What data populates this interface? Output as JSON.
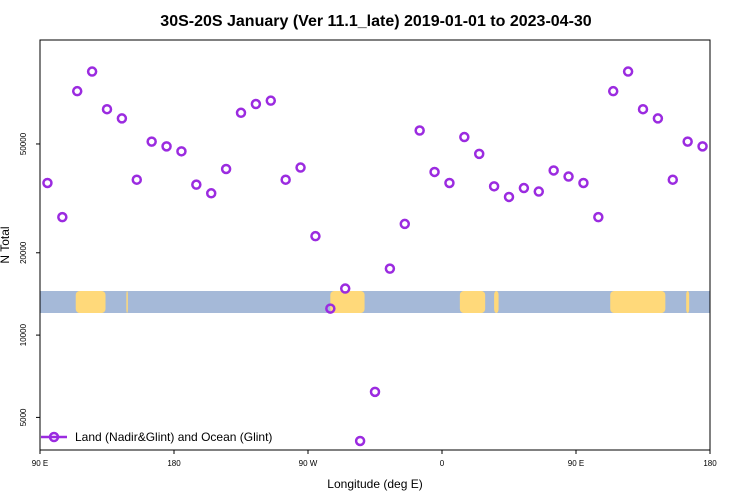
{
  "chart_data": {
    "type": "scatter",
    "title": "30S-20S January (Ver 11.1_late)   2019-01-01 to 2023-04-30",
    "xlabel": "Longitude (deg E)",
    "ylabel": "N Total",
    "y_scale": "log",
    "ylim": [
      3800,
      120000
    ],
    "xlim": [
      90,
      540
    ],
    "x_ticks": [
      {
        "value": 90,
        "label": "90 E"
      },
      {
        "value": 180,
        "label": "180"
      },
      {
        "value": 270,
        "label": "90 W"
      },
      {
        "value": 360,
        "label": "0"
      },
      {
        "value": 450,
        "label": "90 E"
      },
      {
        "value": 540,
        "label": "180"
      }
    ],
    "y_ticks": [
      {
        "value": 5000,
        "label": "5000"
      },
      {
        "value": 10000,
        "label": "10000"
      },
      {
        "value": 20000,
        "label": "20000"
      },
      {
        "value": 50000,
        "label": "50000"
      }
    ],
    "series": [
      {
        "name": "Land (Nadir&Glint) and Ocean (Glint)",
        "color": "#9b2be0",
        "marker": "open-circle",
        "points": [
          [
            95,
            36000
          ],
          [
            105,
            27000
          ],
          [
            115,
            78000
          ],
          [
            125,
            92000
          ],
          [
            135,
            67000
          ],
          [
            145,
            62000
          ],
          [
            155,
            37000
          ],
          [
            165,
            51000
          ],
          [
            175,
            49000
          ],
          [
            185,
            47000
          ],
          [
            195,
            35500
          ],
          [
            205,
            33000
          ],
          [
            215,
            40500
          ],
          [
            225,
            65000
          ],
          [
            235,
            70000
          ],
          [
            245,
            72000
          ],
          [
            255,
            37000
          ],
          [
            265,
            41000
          ],
          [
            275,
            23000
          ],
          [
            285,
            12500
          ],
          [
            295,
            14800
          ],
          [
            305,
            4100
          ],
          [
            315,
            6200
          ],
          [
            325,
            17500
          ],
          [
            335,
            25500
          ],
          [
            345,
            56000
          ],
          [
            355,
            39500
          ],
          [
            365,
            36000
          ],
          [
            375,
            53000
          ],
          [
            385,
            46000
          ],
          [
            395,
            35000
          ],
          [
            405,
            32000
          ],
          [
            415,
            34500
          ],
          [
            425,
            33500
          ],
          [
            435,
            40000
          ],
          [
            445,
            38000
          ],
          [
            455,
            36000
          ],
          [
            465,
            27000
          ],
          [
            475,
            78000
          ],
          [
            485,
            92000
          ],
          [
            495,
            67000
          ],
          [
            505,
            62000
          ],
          [
            515,
            37000
          ],
          [
            525,
            51000
          ],
          [
            535,
            49000
          ]
        ]
      }
    ],
    "legend": {
      "position": "bottom-left"
    },
    "grid": false,
    "map_strip": {
      "ocean_color": "#a5b9d8",
      "land_color": "#ffd97a",
      "land_ranges": [
        [
          114,
          134
        ],
        [
          148,
          149
        ],
        [
          285,
          308
        ],
        [
          372,
          389
        ],
        [
          395,
          398
        ],
        [
          473,
          510
        ],
        [
          524,
          526
        ]
      ]
    }
  }
}
